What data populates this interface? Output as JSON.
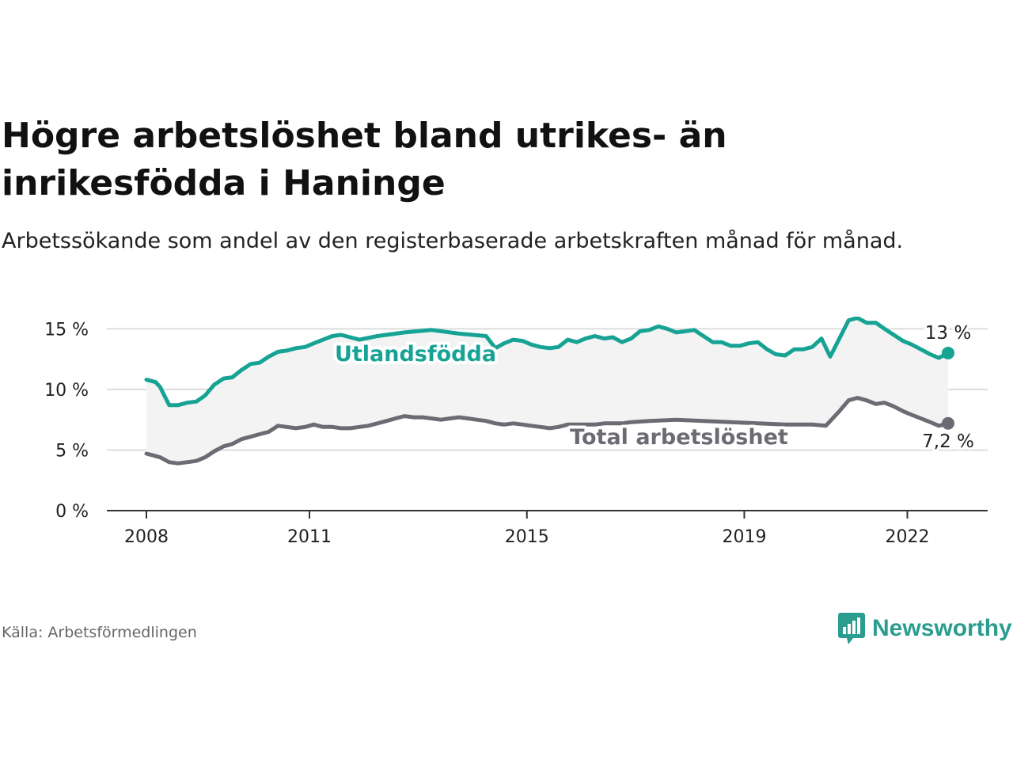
{
  "title": "Högre arbetslöshet bland utrikes- än inrikesfödda i Haninge",
  "subtitle": "Arbetssökande som andel av den registerbaserade arbetskraften månad för månad.",
  "source": "Källa: Arbetsförmedlingen",
  "brand": {
    "name": "Newsworthy",
    "icon": "newsworthy-logo-icon"
  },
  "colors": {
    "foreign": "#16a394",
    "total": "#6b6b73",
    "band": "#f3f3f3",
    "grid": "#dddddd",
    "axis": "#333333"
  },
  "chart_data": {
    "type": "line",
    "title": "Högre arbetslöshet bland utrikes- än inrikesfödda i Haninge",
    "xlabel": "",
    "ylabel": "",
    "xlim": [
      2008,
      2022.75
    ],
    "ylim": [
      0,
      16
    ],
    "y_ticks": [
      0,
      5,
      10,
      15
    ],
    "y_tick_labels": [
      "0 %",
      "5 %",
      "10 %",
      "15 %"
    ],
    "x_ticks": [
      2008,
      2011,
      2015,
      2019,
      2022
    ],
    "x_tick_labels": [
      "2008",
      "2011",
      "2015",
      "2019",
      "2022"
    ],
    "grid": true,
    "series": [
      {
        "name": "Utlandsfödda",
        "label": "Utlandsfödda",
        "end_label": "13 %",
        "points": [
          [
            2008.0,
            10.8
          ],
          [
            2008.17,
            10.6
          ],
          [
            2008.25,
            10.2
          ],
          [
            2008.42,
            8.7
          ],
          [
            2008.58,
            8.7
          ],
          [
            2008.75,
            8.9
          ],
          [
            2008.92,
            9.0
          ],
          [
            2009.08,
            9.5
          ],
          [
            2009.25,
            10.4
          ],
          [
            2009.42,
            10.9
          ],
          [
            2009.58,
            11.0
          ],
          [
            2009.75,
            11.6
          ],
          [
            2009.92,
            12.1
          ],
          [
            2010.08,
            12.2
          ],
          [
            2010.25,
            12.7
          ],
          [
            2010.42,
            13.1
          ],
          [
            2010.58,
            13.2
          ],
          [
            2010.75,
            13.4
          ],
          [
            2010.92,
            13.5
          ],
          [
            2011.08,
            13.8
          ],
          [
            2011.25,
            14.1
          ],
          [
            2011.42,
            14.4
          ],
          [
            2011.58,
            14.5
          ],
          [
            2011.75,
            14.3
          ],
          [
            2011.92,
            14.1
          ],
          [
            2012.25,
            14.4
          ],
          [
            2012.75,
            14.7
          ],
          [
            2013.25,
            14.9
          ],
          [
            2013.75,
            14.6
          ],
          [
            2014.25,
            14.4
          ],
          [
            2014.42,
            13.4
          ],
          [
            2014.58,
            13.8
          ],
          [
            2014.75,
            14.1
          ],
          [
            2014.92,
            14.0
          ],
          [
            2015.08,
            13.7
          ],
          [
            2015.25,
            13.5
          ],
          [
            2015.42,
            13.4
          ],
          [
            2015.58,
            13.5
          ],
          [
            2015.75,
            14.1
          ],
          [
            2015.92,
            13.9
          ],
          [
            2016.08,
            14.2
          ],
          [
            2016.25,
            14.4
          ],
          [
            2016.42,
            14.2
          ],
          [
            2016.58,
            14.3
          ],
          [
            2016.75,
            13.9
          ],
          [
            2016.92,
            14.2
          ],
          [
            2017.08,
            14.8
          ],
          [
            2017.25,
            14.9
          ],
          [
            2017.42,
            15.2
          ],
          [
            2017.58,
            15.0
          ],
          [
            2017.75,
            14.7
          ],
          [
            2017.92,
            14.8
          ],
          [
            2018.08,
            14.9
          ],
          [
            2018.25,
            14.4
          ],
          [
            2018.42,
            13.9
          ],
          [
            2018.58,
            13.9
          ],
          [
            2018.75,
            13.6
          ],
          [
            2018.92,
            13.6
          ],
          [
            2019.08,
            13.8
          ],
          [
            2019.25,
            13.9
          ],
          [
            2019.42,
            13.3
          ],
          [
            2019.58,
            12.9
          ],
          [
            2019.75,
            12.8
          ],
          [
            2019.92,
            13.3
          ],
          [
            2020.08,
            13.3
          ],
          [
            2020.25,
            13.5
          ],
          [
            2020.42,
            14.2
          ],
          [
            2020.58,
            12.7
          ],
          [
            2020.75,
            14.2
          ],
          [
            2020.92,
            15.7
          ],
          [
            2021.08,
            15.9
          ],
          [
            2021.25,
            15.5
          ],
          [
            2021.42,
            15.5
          ],
          [
            2021.58,
            15.0
          ],
          [
            2021.75,
            14.5
          ],
          [
            2021.92,
            14.0
          ],
          [
            2022.08,
            13.7
          ],
          [
            2022.25,
            13.3
          ],
          [
            2022.42,
            12.9
          ],
          [
            2022.58,
            12.6
          ],
          [
            2022.75,
            13.0
          ]
        ]
      },
      {
        "name": "Total arbetslöshet",
        "label": "Total arbetslöshet",
        "end_label": "7,2 %",
        "points": [
          [
            2008.0,
            4.7
          ],
          [
            2008.17,
            4.5
          ],
          [
            2008.25,
            4.4
          ],
          [
            2008.42,
            4.0
          ],
          [
            2008.58,
            3.9
          ],
          [
            2008.75,
            4.0
          ],
          [
            2008.92,
            4.1
          ],
          [
            2009.08,
            4.4
          ],
          [
            2009.25,
            4.9
          ],
          [
            2009.42,
            5.3
          ],
          [
            2009.58,
            5.5
          ],
          [
            2009.75,
            5.9
          ],
          [
            2009.92,
            6.1
          ],
          [
            2010.08,
            6.3
          ],
          [
            2010.25,
            6.5
          ],
          [
            2010.42,
            7.0
          ],
          [
            2010.58,
            6.9
          ],
          [
            2010.75,
            6.8
          ],
          [
            2010.92,
            6.9
          ],
          [
            2011.08,
            7.1
          ],
          [
            2011.25,
            6.9
          ],
          [
            2011.42,
            6.9
          ],
          [
            2011.58,
            6.8
          ],
          [
            2011.75,
            6.8
          ],
          [
            2011.92,
            6.9
          ],
          [
            2012.08,
            7.0
          ],
          [
            2012.25,
            7.2
          ],
          [
            2012.42,
            7.4
          ],
          [
            2012.58,
            7.6
          ],
          [
            2012.75,
            7.8
          ],
          [
            2012.92,
            7.7
          ],
          [
            2013.08,
            7.7
          ],
          [
            2013.25,
            7.6
          ],
          [
            2013.42,
            7.5
          ],
          [
            2013.58,
            7.6
          ],
          [
            2013.75,
            7.7
          ],
          [
            2013.92,
            7.6
          ],
          [
            2014.08,
            7.5
          ],
          [
            2014.25,
            7.4
          ],
          [
            2014.42,
            7.2
          ],
          [
            2014.58,
            7.1
          ],
          [
            2014.75,
            7.2
          ],
          [
            2014.92,
            7.1
          ],
          [
            2015.08,
            7.0
          ],
          [
            2015.25,
            6.9
          ],
          [
            2015.42,
            6.8
          ],
          [
            2015.58,
            6.9
          ],
          [
            2015.75,
            7.1
          ],
          [
            2015.92,
            7.1
          ],
          [
            2016.08,
            7.1
          ],
          [
            2016.25,
            7.1
          ],
          [
            2016.42,
            7.2
          ],
          [
            2016.58,
            7.2
          ],
          [
            2016.75,
            7.2
          ],
          [
            2016.92,
            7.3
          ],
          [
            2017.25,
            7.4
          ],
          [
            2017.75,
            7.5
          ],
          [
            2018.25,
            7.4
          ],
          [
            2018.75,
            7.3
          ],
          [
            2019.25,
            7.2
          ],
          [
            2019.75,
            7.1
          ],
          [
            2020.25,
            7.1
          ],
          [
            2020.5,
            7.0
          ],
          [
            2020.75,
            8.2
          ],
          [
            2020.92,
            9.1
          ],
          [
            2021.08,
            9.3
          ],
          [
            2021.25,
            9.1
          ],
          [
            2021.42,
            8.8
          ],
          [
            2021.58,
            8.9
          ],
          [
            2021.75,
            8.6
          ],
          [
            2021.92,
            8.2
          ],
          [
            2022.08,
            7.9
          ],
          [
            2022.25,
            7.6
          ],
          [
            2022.42,
            7.3
          ],
          [
            2022.58,
            7.0
          ],
          [
            2022.75,
            7.2
          ]
        ]
      }
    ]
  }
}
